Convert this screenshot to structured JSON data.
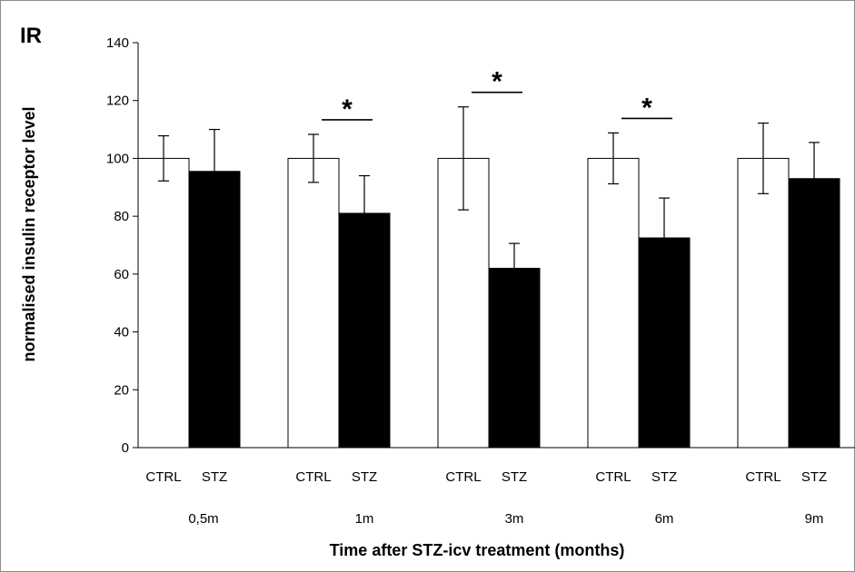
{
  "chart_data": {
    "type": "bar",
    "panel_label": "IR",
    "ylabel": "normalised insulin receptor level",
    "xlabel": "Time after STZ-icv treatment (months)",
    "ylim": [
      0,
      140
    ],
    "yticks": [
      0,
      20,
      40,
      60,
      80,
      100,
      120,
      140
    ],
    "bar_labels": [
      "CTRL",
      "STZ"
    ],
    "groups": [
      {
        "label": "0,5m",
        "significance": "",
        "bars": [
          {
            "name": "CTRL",
            "value": 100,
            "error": 7.8
          },
          {
            "name": "STZ",
            "value": 95.5,
            "error": 14.5
          }
        ]
      },
      {
        "label": "1m",
        "significance": "*",
        "bars": [
          {
            "name": "CTRL",
            "value": 100,
            "error": 8.3
          },
          {
            "name": "STZ",
            "value": 81,
            "error": 13
          }
        ]
      },
      {
        "label": "3m",
        "significance": "*",
        "bars": [
          {
            "name": "CTRL",
            "value": 100,
            "error": 17.8
          },
          {
            "name": "STZ",
            "value": 62,
            "error": 8.6
          }
        ]
      },
      {
        "label": "6m",
        "significance": "*",
        "bars": [
          {
            "name": "CTRL",
            "value": 100,
            "error": 8.8
          },
          {
            "name": "STZ",
            "value": 72.5,
            "error": 13.8
          }
        ]
      },
      {
        "label": "9m",
        "significance": "",
        "bars": [
          {
            "name": "CTRL",
            "value": 100,
            "error": 12.2
          },
          {
            "name": "STZ",
            "value": 93,
            "error": 12.5
          }
        ]
      }
    ],
    "colors": {
      "CTRL": "#ffffff",
      "STZ": "#000000",
      "stroke": "#000000"
    },
    "grid": false,
    "legend": "none"
  }
}
